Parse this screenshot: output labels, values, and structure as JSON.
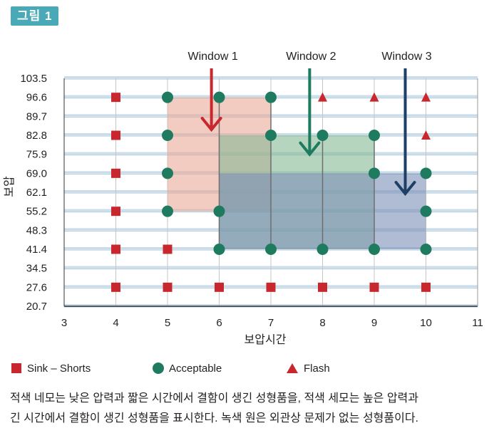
{
  "figure_label": "그림 1",
  "chart_data": {
    "type": "scatter",
    "xlabel": "보압시간",
    "ylabel": "보압",
    "xlim": [
      3,
      11
    ],
    "ylim": [
      20.7,
      103.5
    ],
    "x_ticks": [
      "3",
      "4",
      "5",
      "6",
      "7",
      "8",
      "9",
      "10",
      "11"
    ],
    "y_ticks": [
      "103.5",
      "96.6",
      "89.7",
      "82.8",
      "75.9",
      "69.0",
      "62.1",
      "55.2",
      "48.3",
      "41.4",
      "34.5",
      "27.6",
      "20.7"
    ],
    "grid": true,
    "legend_position": "bottom",
    "series": [
      {
        "name": "Sink – Shorts",
        "marker": "square",
        "color": "#c8282d",
        "points": [
          [
            4,
            96.6
          ],
          [
            4,
            82.8
          ],
          [
            4,
            69.0
          ],
          [
            4,
            55.2
          ],
          [
            4,
            41.4
          ],
          [
            4,
            27.6
          ],
          [
            5,
            41.4
          ],
          [
            5,
            27.6
          ],
          [
            6,
            27.6
          ],
          [
            7,
            27.6
          ],
          [
            8,
            27.6
          ],
          [
            9,
            27.6
          ],
          [
            10,
            27.6
          ]
        ]
      },
      {
        "name": "Acceptable",
        "marker": "circle",
        "color": "#1e7b5f",
        "points": [
          [
            5,
            96.6
          ],
          [
            5,
            82.8
          ],
          [
            5,
            69.0
          ],
          [
            5,
            55.2
          ],
          [
            6,
            96.6
          ],
          [
            6,
            55.2
          ],
          [
            6,
            41.4
          ],
          [
            7,
            96.6
          ],
          [
            7,
            82.8
          ],
          [
            7,
            41.4
          ],
          [
            8,
            82.8
          ],
          [
            8,
            41.4
          ],
          [
            9,
            82.8
          ],
          [
            9,
            69.0
          ],
          [
            9,
            41.4
          ],
          [
            10,
            69.0
          ],
          [
            10,
            55.2
          ],
          [
            10,
            41.4
          ]
        ]
      },
      {
        "name": "Flash",
        "marker": "triangle",
        "color": "#c8282d",
        "points": [
          [
            8,
            96.6
          ],
          [
            9,
            96.6
          ],
          [
            10,
            96.6
          ],
          [
            10,
            82.8
          ]
        ]
      }
    ],
    "windows": [
      {
        "label": "Window 1",
        "x_range": [
          5,
          7
        ],
        "y_range": [
          55.2,
          96.6
        ],
        "fill": "#e9a898",
        "arrow_color": "#c8282d"
      },
      {
        "label": "Window 2",
        "x_range": [
          6,
          9
        ],
        "y_range": [
          41.4,
          82.8
        ],
        "fill": "#86b995",
        "arrow_color": "#1e7b5f"
      },
      {
        "label": "Window 3",
        "x_range": [
          6,
          10
        ],
        "y_range": [
          41.4,
          69.0
        ],
        "fill": "#7c8fb8",
        "arrow_color": "#1e3f66"
      }
    ]
  },
  "legend": {
    "sink_shorts": "Sink – Shorts",
    "acceptable": "Acceptable",
    "flash": "Flash"
  },
  "caption": {
    "line1": "적색 네모는 낮은 압력과 짧은 시간에서 결함이 생긴 성형품을, 적색 세모는 높은 압력과",
    "line2": "긴 시간에서 결함이 생긴 성형품을 표시한다. 녹색 원은 외관상 문제가 없는 성형품이다."
  }
}
